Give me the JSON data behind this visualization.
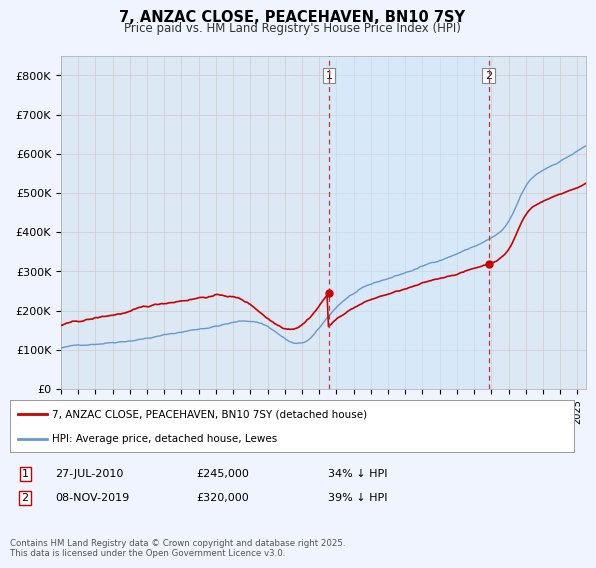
{
  "title": "7, ANZAC CLOSE, PEACEHAVEN, BN10 7SY",
  "subtitle": "Price paid vs. HM Land Registry's House Price Index (HPI)",
  "ylabel_ticks": [
    "£0",
    "£100K",
    "£200K",
    "£300K",
    "£400K",
    "£500K",
    "£600K",
    "£700K",
    "£800K"
  ],
  "ytick_values": [
    0,
    100000,
    200000,
    300000,
    400000,
    500000,
    600000,
    700000,
    800000
  ],
  "ylim": [
    0,
    850000
  ],
  "xlim_start": 1995.0,
  "xlim_end": 2025.5,
  "marker1_x": 2010.57,
  "marker1_y": 245000,
  "marker2_x": 2019.85,
  "marker2_y": 320000,
  "vline1_x": 2010.57,
  "vline2_x": 2019.85,
  "legend_line1": "7, ANZAC CLOSE, PEACEHAVEN, BN10 7SY (detached house)",
  "legend_line2": "HPI: Average price, detached house, Lewes",
  "footnote": "Contains HM Land Registry data © Crown copyright and database right 2025.\nThis data is licensed under the Open Government Licence v3.0.",
  "line_color_red": "#cc0000",
  "line_color_blue": "#6699cc",
  "background_color": "#f0f4ff",
  "plot_bg": "#dde8f5",
  "shade_color": "#d0e4f7",
  "grid_color": "#cccccc",
  "table_row1": [
    "1",
    "27-JUL-2010",
    "£245,000",
    "34% ↓ HPI"
  ],
  "table_row2": [
    "2",
    "08-NOV-2019",
    "£320,000",
    "39% ↓ HPI"
  ]
}
